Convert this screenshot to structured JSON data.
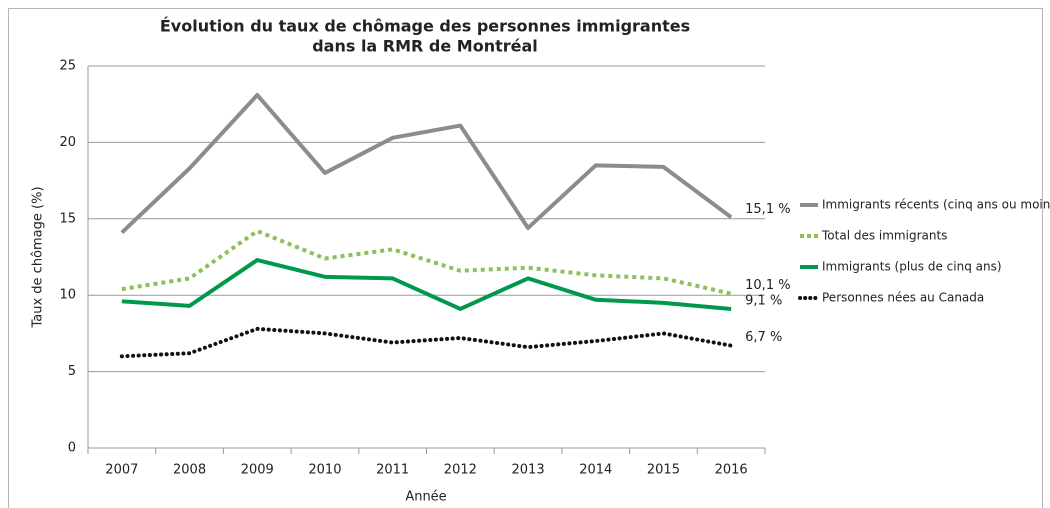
{
  "chart_data": {
    "type": "line",
    "title": [
      "Évolution du taux de chômage des personnes immigrantes",
      "dans la RMR de Montréal"
    ],
    "x_label": "Année",
    "y_label": "Taux de chômage (%)",
    "categories": [
      "2007",
      "2008",
      "2009",
      "2010",
      "2011",
      "2012",
      "2013",
      "2014",
      "2015",
      "2016"
    ],
    "ylim": [
      0,
      25
    ],
    "yticks": [
      0,
      5,
      10,
      15,
      20,
      25
    ],
    "grid": true,
    "legend": "right",
    "series": [
      {
        "name": "Immigrants récents (cinq ans ou moins)",
        "color": "#8c8c8c",
        "style": "solid",
        "values": [
          14.1,
          18.3,
          23.1,
          18.0,
          20.3,
          21.1,
          14.4,
          18.5,
          18.4,
          15.1
        ],
        "value_labels": [
          null,
          null,
          null,
          null,
          null,
          null,
          null,
          null,
          null,
          "15,1 %"
        ]
      },
      {
        "name": "Total des immigrants",
        "color": "#8dc05a",
        "style": "dashed",
        "values": [
          10.4,
          11.1,
          14.2,
          12.4,
          13.0,
          11.6,
          11.8,
          11.3,
          11.1,
          10.1
        ],
        "value_labels": [
          null,
          null,
          null,
          null,
          null,
          null,
          null,
          null,
          null,
          "10,1 %"
        ]
      },
      {
        "name": "Immigrants (plus de cinq ans)",
        "color": "#00994c",
        "style": "solid",
        "values": [
          9.6,
          9.3,
          12.3,
          11.2,
          11.1,
          9.1,
          11.1,
          9.7,
          9.5,
          9.1
        ],
        "value_labels": [
          null,
          null,
          null,
          null,
          null,
          null,
          null,
          null,
          null,
          "9,1 %"
        ]
      },
      {
        "name": "Personnes nées au Canada",
        "color": "#111111",
        "style": "dotted",
        "values": [
          6.0,
          6.2,
          7.8,
          7.5,
          6.9,
          7.2,
          6.6,
          7.0,
          7.5,
          6.7
        ],
        "value_labels": [
          null,
          null,
          null,
          null,
          null,
          null,
          null,
          null,
          null,
          "6,7 %"
        ]
      }
    ]
  }
}
